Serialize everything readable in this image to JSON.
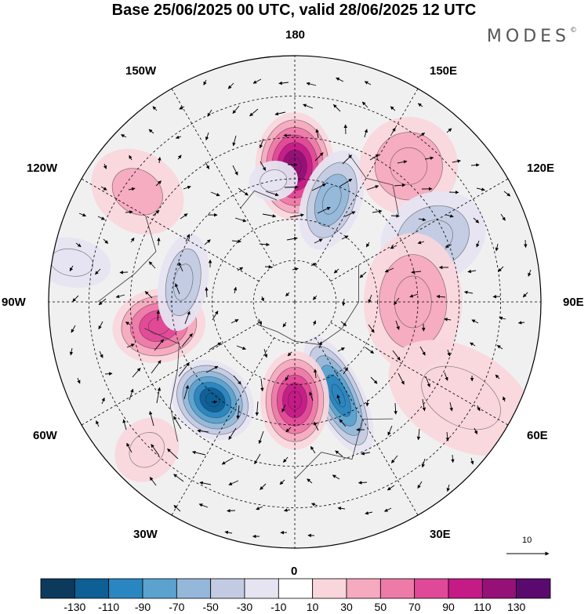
{
  "title": "Base 25/06/2025 00 UTC, valid 28/06/2025 12 UTC",
  "brand": {
    "name": "MODES",
    "mark": "©"
  },
  "longitude_labels": {
    "top": "180",
    "bottom": "0",
    "left": "90W",
    "right": "90E",
    "nw1": "150W",
    "nw2": "120W",
    "ne1": "150E",
    "ne2": "120E",
    "sw1": "60W",
    "sw2": "30W",
    "se1": "60E",
    "se2": "30E"
  },
  "reference_vector": {
    "label": "10"
  },
  "colorbar": {
    "colors": [
      "#0b3a5c",
      "#0e5f95",
      "#2a86c0",
      "#5ba2cf",
      "#95b8da",
      "#c3cbe3",
      "#e6e4f1",
      "#ffffff",
      "#f9d6dc",
      "#f5aabf",
      "#ee7aa8",
      "#e04997",
      "#c41b87",
      "#951077",
      "#5a0a6e"
    ],
    "labels": [
      "-130",
      "-110",
      "-90",
      "-70",
      "-50",
      "-30",
      "-10",
      "10",
      "30",
      "50",
      "70",
      "90",
      "110",
      "130"
    ]
  },
  "anomalies": [
    {
      "lon": 180,
      "r": 0.55,
      "sx": 0.16,
      "sy": 0.22,
      "value": 125
    },
    {
      "lon": 160,
      "r": 0.44,
      "sx": 0.12,
      "sy": 0.21,
      "value": -55
    },
    {
      "lon": 140,
      "r": 0.72,
      "sx": 0.2,
      "sy": 0.2,
      "value": 35
    },
    {
      "lon": 115,
      "r": 0.62,
      "sx": 0.18,
      "sy": 0.22,
      "value": -38
    },
    {
      "lon": 90,
      "r": 0.48,
      "sx": 0.28,
      "sy": 0.2,
      "value": 45
    },
    {
      "lon": 60,
      "r": 0.78,
      "sx": 0.2,
      "sy": 0.32,
      "value": 22
    },
    {
      "lon": 25,
      "r": 0.42,
      "sx": 0.1,
      "sy": 0.26,
      "value": -95
    },
    {
      "lon": 0,
      "r": 0.4,
      "sx": 0.14,
      "sy": 0.2,
      "value": 105
    },
    {
      "lon": -40,
      "r": 0.52,
      "sx": 0.18,
      "sy": 0.15,
      "value": -118
    },
    {
      "lon": -80,
      "r": 0.56,
      "sx": 0.15,
      "sy": 0.19,
      "value": 88
    },
    {
      "lon": -100,
      "r": 0.46,
      "sx": 0.2,
      "sy": 0.1,
      "value": -40
    },
    {
      "lon": -125,
      "r": 0.78,
      "sx": 0.16,
      "sy": 0.2,
      "value": 30
    },
    {
      "lon": -170,
      "r": 0.5,
      "sx": 0.1,
      "sy": 0.08,
      "value": -22
    },
    {
      "lon": -45,
      "r": 0.85,
      "sx": 0.12,
      "sy": 0.14,
      "value": 28
    },
    {
      "lon": -100,
      "r": 0.92,
      "sx": 0.1,
      "sy": 0.16,
      "value": -15
    }
  ]
}
